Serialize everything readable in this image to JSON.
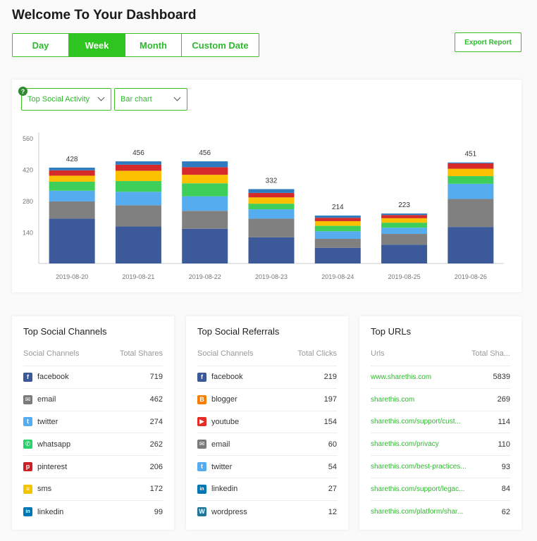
{
  "page": {
    "title": "Welcome To Your Dashboard"
  },
  "range_tabs": [
    {
      "label": "Day",
      "active": false
    },
    {
      "label": "Week",
      "active": true
    },
    {
      "label": "Month",
      "active": false
    },
    {
      "label": "Custom Date",
      "active": false
    }
  ],
  "export_label": "Export Report",
  "chart_controls": {
    "metric": "Top Social Activity",
    "chart_type": "Bar chart",
    "help": "?"
  },
  "colors": {
    "accent": "#2ec520",
    "stack": [
      "#3c5a9a",
      "#808080",
      "#55acee",
      "#3ecf5a",
      "#fbc000",
      "#d62a2a",
      "#2f7bbf"
    ]
  },
  "chart_data": {
    "type": "bar",
    "stacked": true,
    "categories": [
      "2019-08-20",
      "2019-08-21",
      "2019-08-22",
      "2019-08-23",
      "2019-08-24",
      "2019-08-25",
      "2019-08-26"
    ],
    "totals": [
      428,
      456,
      456,
      332,
      214,
      223,
      451
    ],
    "yticks": [
      140,
      280,
      420,
      560
    ],
    "ylim": [
      0,
      560
    ],
    "series": [
      {
        "values": [
          200,
          165,
          155,
          117,
          70,
          84,
          163
        ]
      },
      {
        "values": [
          77,
          95,
          80,
          83,
          40,
          48,
          125
        ]
      },
      {
        "values": [
          48,
          60,
          65,
          42,
          34,
          28,
          68
        ]
      },
      {
        "values": [
          40,
          48,
          58,
          25,
          24,
          22,
          34
        ]
      },
      {
        "values": [
          27,
          46,
          38,
          28,
          21,
          20,
          33
        ]
      },
      {
        "values": [
          24,
          27,
          34,
          20,
          15,
          14,
          24
        ]
      },
      {
        "values": [
          12,
          15,
          26,
          17,
          10,
          7,
          4
        ]
      }
    ],
    "grid": false,
    "legend": "none"
  },
  "tables": [
    {
      "title": "Top Social Channels",
      "col1": "Social Channels",
      "col2": "Total Shares",
      "rows": [
        {
          "icon": "facebook-icon",
          "label": "facebook",
          "value": "719"
        },
        {
          "icon": "email-icon",
          "label": "email",
          "value": "462"
        },
        {
          "icon": "twitter-icon",
          "label": "twitter",
          "value": "274"
        },
        {
          "icon": "whatsapp-icon",
          "label": "whatsapp",
          "value": "262"
        },
        {
          "icon": "pinterest-icon",
          "label": "pinterest",
          "value": "206"
        },
        {
          "icon": "sms-icon",
          "label": "sms",
          "value": "172"
        },
        {
          "icon": "linkedin-icon",
          "label": "linkedin",
          "value": "99"
        }
      ]
    },
    {
      "title": "Top Social Referrals",
      "col1": "Social Channels",
      "col2": "Total Clicks",
      "rows": [
        {
          "icon": "facebook-icon",
          "label": "facebook",
          "value": "219"
        },
        {
          "icon": "blogger-icon",
          "label": "blogger",
          "value": "197"
        },
        {
          "icon": "youtube-icon",
          "label": "youtube",
          "value": "154"
        },
        {
          "icon": "email-icon",
          "label": "email",
          "value": "60"
        },
        {
          "icon": "twitter-icon",
          "label": "twitter",
          "value": "54"
        },
        {
          "icon": "linkedin-icon",
          "label": "linkedin",
          "value": "27"
        },
        {
          "icon": "wordpress-icon",
          "label": "wordpress",
          "value": "12"
        }
      ]
    },
    {
      "title": "Top URLs",
      "col1": "Urls",
      "col2": "Total Sha...",
      "rows": [
        {
          "label": "www.sharethis.com",
          "value": "5839"
        },
        {
          "label": "sharethis.com",
          "value": "269"
        },
        {
          "label": "sharethis.com/support/cust...",
          "value": "114"
        },
        {
          "label": "sharethis.com/privacy",
          "value": "110"
        },
        {
          "label": "sharethis.com/best-practices...",
          "value": "93"
        },
        {
          "label": "sharethis.com/support/legac...",
          "value": "84"
        },
        {
          "label": "sharethis.com/platform/shar...",
          "value": "62"
        }
      ]
    }
  ]
}
